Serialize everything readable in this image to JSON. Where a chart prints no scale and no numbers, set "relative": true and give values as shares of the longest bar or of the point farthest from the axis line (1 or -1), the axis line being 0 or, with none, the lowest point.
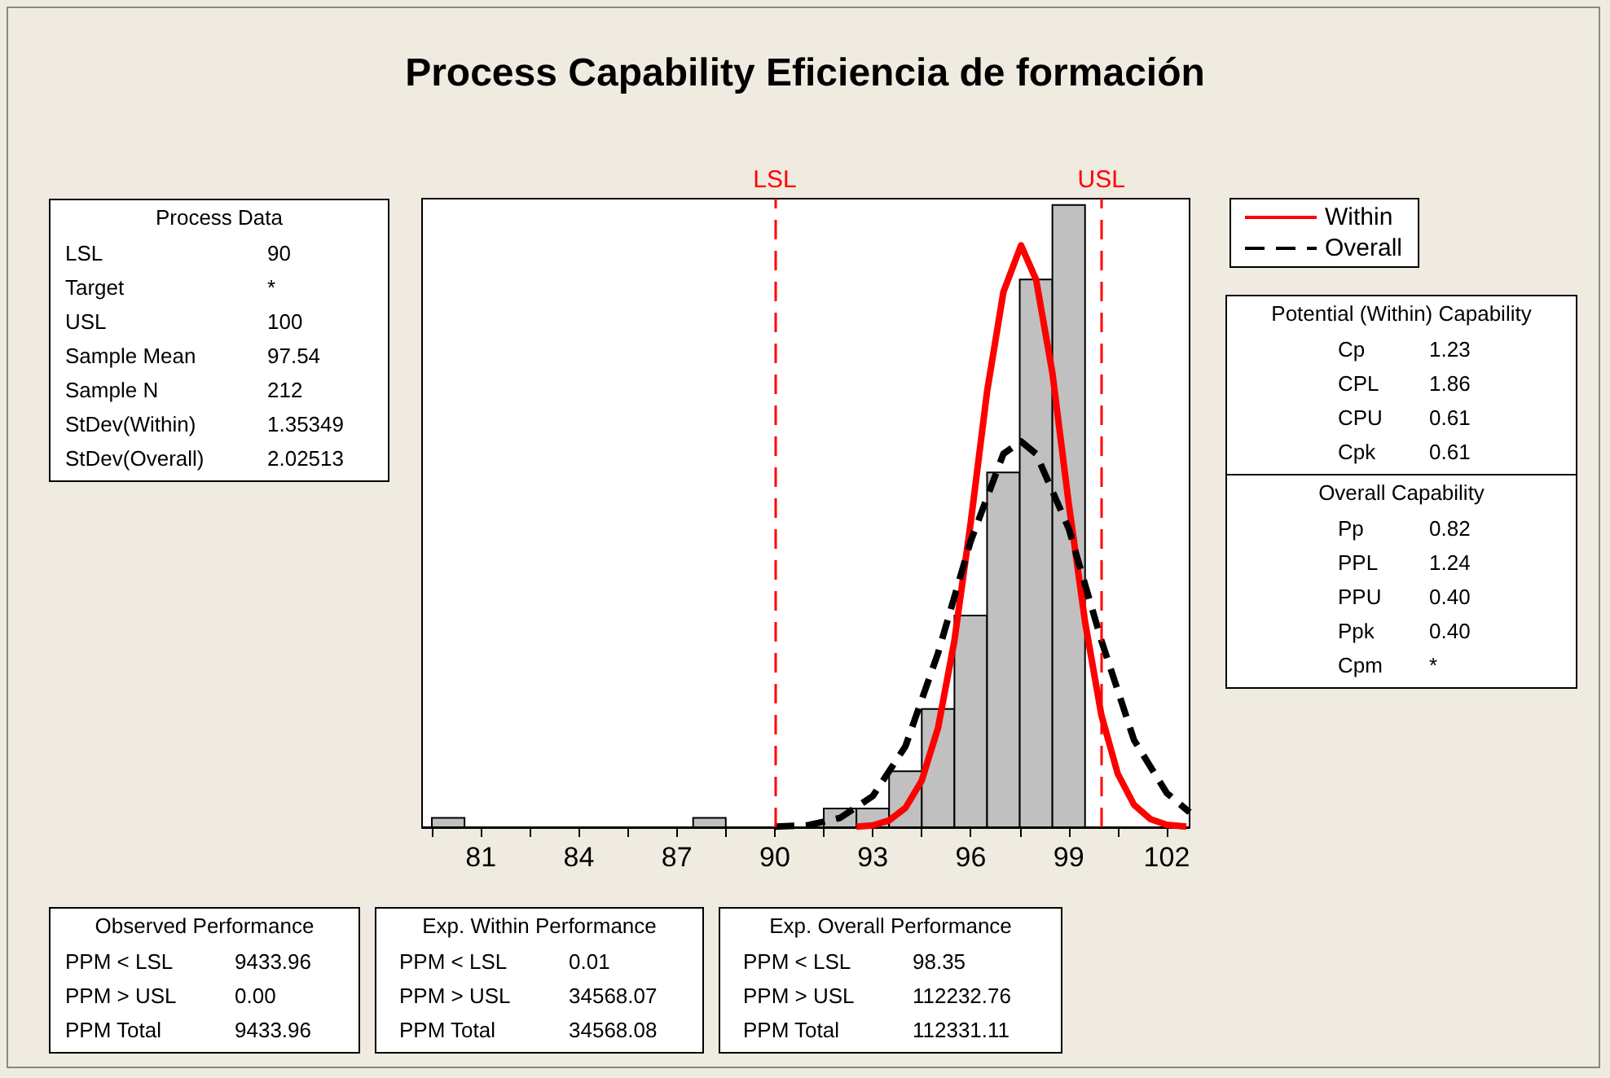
{
  "chart_data": {
    "type": "histogram",
    "title": "Process Capability Eficiencia de formación",
    "relative": true,
    "bins": [
      79.5,
      80.5,
      81.5,
      82.5,
      83.5,
      84.5,
      85.5,
      86.5,
      87.5,
      88.5,
      89.5,
      90.5,
      91.5,
      92.5,
      93.5,
      94.5,
      95.5,
      96.5,
      97.5,
      98.5,
      99.5
    ],
    "series": [
      {
        "color": "#c0c0c0",
        "values": [
          0.015,
          0,
          0,
          0,
          0,
          0,
          0,
          0,
          0.015,
          0,
          0,
          0,
          0.03,
          0.03,
          0.09,
          0.19,
          0.34,
          0.57,
          0.88,
          1
        ]
      },
      {
        "type": "line",
        "name": "Within",
        "color": "#ff0000",
        "line_style": "solid",
        "x": [
          92.5,
          93,
          93.5,
          94,
          94.5,
          95,
          95.5,
          96,
          96.5,
          97,
          97.54,
          98,
          98.5,
          99,
          99.5,
          100,
          100.5,
          101,
          101.5,
          102,
          102.6
        ],
        "values": [
          0.001,
          0.003,
          0.011,
          0.031,
          0.075,
          0.16,
          0.3,
          0.49,
          0.7,
          0.86,
          0.935,
          0.88,
          0.73,
          0.52,
          0.33,
          0.18,
          0.086,
          0.036,
          0.013,
          0.004,
          0.001
        ]
      },
      {
        "type": "line",
        "name": "Overall",
        "color": "#000000",
        "line_style": "dashed",
        "x": [
          90,
          91,
          92,
          93,
          94,
          95,
          96,
          97,
          97.54,
          98,
          99,
          100,
          101,
          102,
          102.7
        ],
        "values": [
          0.001,
          0.003,
          0.015,
          0.05,
          0.13,
          0.28,
          0.46,
          0.6,
          0.62,
          0.6,
          0.48,
          0.3,
          0.14,
          0.055,
          0.024
        ]
      }
    ],
    "xlim": [
      79.2,
      102.7
    ],
    "xticks": [
      {
        "value": 79.5,
        "label": null
      },
      81,
      {
        "value": 82.5,
        "label": null
      },
      84,
      {
        "value": 85.5,
        "label": null
      },
      87,
      {
        "value": 88.5,
        "label": null
      },
      90,
      {
        "value": 91.5,
        "label": null
      },
      93,
      {
        "value": 94.5,
        "label": null
      },
      96,
      {
        "value": 97.5,
        "label": null
      },
      99,
      {
        "value": 100.5,
        "label": null
      },
      102
    ],
    "ref_lines": [
      {
        "axis": "x",
        "value": 90,
        "label": "LSL",
        "color": "#ff0000",
        "line_style": "dashed"
      },
      {
        "axis": "x",
        "value": 100,
        "label": "USL",
        "color": "#ff0000",
        "line_style": "dashed"
      }
    ],
    "legend": "top right",
    "marker": "none",
    "grid": false,
    "annotations": [
      "Process Data\nLSL\t90\nTarget\t*\nUSL\t100\nSample Mean\t97.54\nSample N\t212\nStDev(Within)\t1.35349\nStDev(Overall)\t2.02513",
      "Potential (Within) Capability\nCp\t1.23\nCPL\t1.86\nCPU\t0.61\nCpk\t0.61",
      "Overall Capability\nPp\t0.82\nPPL\t1.24\nPPU\t0.40\nPpk\t0.40\nCpm\t*",
      "Observed Performance\nPPM < LSL\t9433.96\nPPM > USL\t0.00\nPPM Total\t9433.96",
      "Exp. Within Performance\nPPM < LSL\t0.01\nPPM > USL\t34568.07\nPPM Total\t34568.08",
      "Exp. Overall Performance\nPPM < LSL\t98.35\nPPM > USL\t112232.76\nPPM Total\t112331.11"
    ]
  }
}
